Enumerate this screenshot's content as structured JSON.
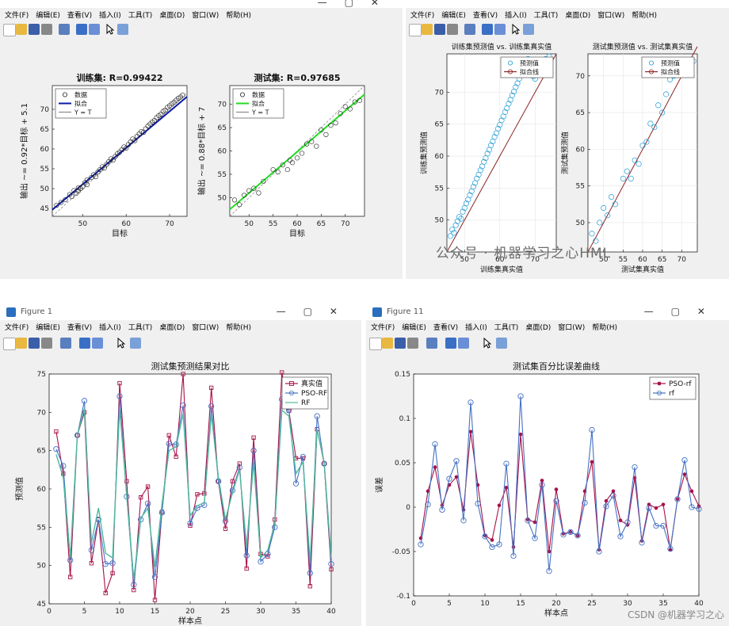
{
  "windows": {
    "top_left": {
      "menu": [
        "文件(F)",
        "编辑(E)",
        "查看(V)",
        "插入(I)",
        "工具(T)",
        "桌面(D)",
        "窗口(W)",
        "帮助(H)"
      ]
    },
    "top_right": {
      "menu": [
        "文件(F)",
        "编辑(E)",
        "查看(V)",
        "插入(I)",
        "工具(T)",
        "桌面(D)",
        "窗口(W)",
        "帮助(H)"
      ]
    },
    "bottom_left": {
      "title": "Figure 1",
      "menu": [
        "文件(F)",
        "编辑(E)",
        "查看(V)",
        "插入(I)",
        "工具(T)",
        "桌面(D)",
        "窗口(W)",
        "帮助(H)"
      ]
    },
    "bottom_right": {
      "title": "Figure 11",
      "menu": [
        "文件(F)",
        "编辑(E)",
        "查看(V)",
        "插入(I)",
        "工具(T)",
        "桌面(D)",
        "窗口(W)",
        "帮助(H)"
      ]
    }
  },
  "watermarks": {
    "wechat": "公众号 · 机器学习之心HML",
    "csdn": "CSDN @机器学习之心"
  },
  "colors": {
    "pred": "#a8114a",
    "pso": "#4472c4",
    "rf": "#4fb99f",
    "train_fit": "#0a1aa8",
    "test_fit": "#22dd22",
    "scatter_pt": "#1f9ad6",
    "fitline": "#8b2323"
  },
  "chart_data": [
    {
      "id": "reg-train",
      "type": "scatter",
      "title": "训练集: R=0.99422",
      "xlabel": "目标",
      "ylabel": "输出 ~= 0.92*目标 + 5.1",
      "xlim": [
        43,
        74
      ],
      "ylim": [
        43,
        76
      ],
      "xticks": [
        50,
        60,
        70
      ],
      "yticks": [
        45,
        50,
        55,
        60,
        65,
        70
      ],
      "legend": [
        "数据",
        "拟合",
        "Y = T"
      ],
      "legend_position": "top-left",
      "fit": {
        "slope": 0.92,
        "intercept": 5.1
      },
      "x": [
        44,
        45,
        46,
        47,
        47.5,
        48,
        48.5,
        49,
        49,
        49.5,
        50,
        50.5,
        51,
        51,
        52,
        52.5,
        53,
        53.5,
        54,
        54.5,
        55,
        55.5,
        56,
        56.5,
        57,
        57.5,
        58,
        58.5,
        59,
        59.5,
        60,
        60.5,
        61,
        61.5,
        62,
        62.5,
        63,
        63.5,
        64,
        64.5,
        65,
        65.5,
        66,
        66.5,
        67,
        67.5,
        68,
        68.5,
        69,
        69.5,
        70,
        70.5,
        71,
        71.5,
        72,
        72.5,
        73
      ],
      "y": [
        45.8,
        46.5,
        47.2,
        48.5,
        48,
        49.5,
        48.8,
        50.2,
        49.4,
        50,
        50.5,
        51.5,
        51,
        52.2,
        52.8,
        53.5,
        53,
        54.2,
        54.8,
        55.5,
        55.2,
        56.1,
        56.8,
        57.5,
        57.2,
        58.1,
        58.8,
        59.2,
        59.8,
        60.5,
        60.2,
        61.1,
        61.8,
        62.5,
        62.1,
        63.2,
        63.8,
        64.4,
        64.2,
        65.1,
        65.8,
        66.3,
        66.8,
        67.2,
        67.9,
        68.4,
        68.8,
        69.5,
        69.8,
        70.5,
        70.9,
        71.4,
        71.8,
        72.3,
        72.8,
        73.1,
        73.6
      ]
    },
    {
      "id": "reg-test",
      "type": "scatter",
      "title": "测试集: R=0.97685",
      "xlabel": "目标",
      "ylabel": "输出 ~= 0.88*目标 + 7",
      "xlim": [
        46,
        74
      ],
      "ylim": [
        46,
        74
      ],
      "xticks": [
        50,
        55,
        60,
        65,
        70
      ],
      "yticks": [
        50,
        55,
        60,
        65,
        70
      ],
      "legend": [
        "数据",
        "拟合",
        "Y = T"
      ],
      "legend_position": "top-left",
      "fit": {
        "slope": 0.88,
        "intercept": 7
      },
      "x": [
        47,
        48,
        49,
        50,
        51,
        52,
        53,
        55,
        56,
        57,
        58,
        58.5,
        59,
        60,
        61,
        62,
        63,
        64,
        65,
        66,
        67,
        68,
        69,
        70,
        71,
        72,
        73
      ],
      "y": [
        49.5,
        48.5,
        50.5,
        51.5,
        52,
        51,
        53.5,
        56,
        55.5,
        57,
        56,
        58,
        57.5,
        58.5,
        59.5,
        61.5,
        62,
        61,
        64.5,
        63.5,
        65.5,
        66,
        68,
        69.5,
        69,
        70.5,
        70.8
      ]
    },
    {
      "id": "train-fit",
      "type": "scatter",
      "title": "训练集预测值 vs. 训练集真实值",
      "xlabel": "训练集真实值",
      "ylabel": "训练集预测值",
      "xlim": [
        45,
        76
      ],
      "ylim": [
        45,
        76
      ],
      "xticks": [
        50,
        60,
        70
      ],
      "yticks": [
        50,
        55,
        60,
        65,
        70
      ],
      "legend": [
        "预测值",
        "拟合线"
      ],
      "legend_position": "top-right",
      "x": [
        46,
        46.5,
        47,
        47.5,
        48,
        48.5,
        49,
        49.5,
        50,
        50.5,
        51,
        51.5,
        52,
        52.5,
        53,
        53.5,
        54,
        54.5,
        55,
        55.5,
        56,
        56.5,
        57,
        57.5,
        58,
        58.5,
        59,
        59.5,
        60,
        60.5,
        61,
        61.5,
        62,
        62.5,
        63,
        63.5,
        64,
        64.5,
        65,
        65.5,
        66,
        66.5,
        67,
        67.5,
        68,
        68.5,
        69,
        69.5,
        70,
        70.5,
        71,
        72,
        73,
        74
      ],
      "y": [
        47.5,
        48.5,
        48,
        49.2,
        49.8,
        50.5,
        50.2,
        51.3,
        51.9,
        52.6,
        53.2,
        53.9,
        54.5,
        55.2,
        55.8,
        56.5,
        57.1,
        57.8,
        58.4,
        59.1,
        59.7,
        60.4,
        61,
        61.7,
        62.3,
        63,
        63.6,
        64.3,
        64.9,
        65.6,
        66.2,
        66.9,
        67.5,
        68.2,
        68.8,
        69.5,
        70.1,
        70.8,
        71.4,
        72.1,
        72.7,
        73.4,
        74,
        74.6,
        75.2,
        74.6,
        73.8,
        72.5,
        72.1,
        72.8,
        73.2,
        74.5,
        75.2,
        75.6
      ]
    },
    {
      "id": "test-fit",
      "type": "scatter",
      "title": "测试集预测值 vs. 测试集真实值",
      "xlabel": "测试集真实值",
      "ylabel": "测试集预测值",
      "xlim": [
        46,
        74
      ],
      "ylim": [
        46,
        73
      ],
      "xticks": [
        50,
        55,
        60,
        65,
        70
      ],
      "yticks": [
        50,
        55,
        60,
        65,
        70
      ],
      "legend": [
        "预测值",
        "拟合线"
      ],
      "legend_position": "top-right",
      "x": [
        47,
        48,
        49,
        50,
        51,
        52,
        53,
        55,
        56,
        57,
        58,
        59,
        60,
        61,
        62,
        63,
        64,
        65,
        66,
        67,
        68,
        69,
        70,
        71,
        72,
        73
      ],
      "y": [
        48.5,
        47.5,
        50,
        52,
        51,
        53.5,
        52.5,
        56,
        57,
        56,
        58.5,
        58,
        60.5,
        61,
        63.5,
        63,
        66,
        65,
        67.5,
        69.5,
        70,
        70.5,
        71,
        70.5,
        71,
        72
      ]
    },
    {
      "id": "test-compare",
      "type": "line",
      "title": "测试集预测结果对比",
      "xlabel": "样本点",
      "ylabel": "预测值",
      "xlim": [
        0,
        40
      ],
      "ylim": [
        45,
        75
      ],
      "xticks": [
        0,
        5,
        10,
        15,
        20,
        25,
        30,
        35,
        40
      ],
      "yticks": [
        45,
        50,
        55,
        60,
        65,
        70,
        75
      ],
      "legend_position": "top-right",
      "x": [
        1,
        2,
        3,
        4,
        5,
        6,
        7,
        8,
        9,
        10,
        11,
        12,
        13,
        14,
        15,
        16,
        17,
        18,
        19,
        20,
        21,
        22,
        23,
        24,
        25,
        26,
        27,
        28,
        29,
        30,
        31,
        32,
        33,
        34,
        35,
        36,
        37,
        38,
        39,
        40
      ],
      "series": [
        {
          "name": "真实值",
          "marker": "square",
          "values": [
            67.5,
            62,
            48.5,
            67,
            70,
            50.3,
            56,
            46.4,
            49,
            73.8,
            61,
            46.8,
            58.9,
            60.3,
            45.5,
            57,
            67,
            64.2,
            75,
            55.2,
            59.3,
            59.4,
            73.2,
            61,
            54.8,
            61,
            63.3,
            49.6,
            66.7,
            51.5,
            51.2,
            56,
            75.2,
            70.2,
            64,
            64,
            47.3,
            67.8,
            63.3,
            49.5
          ]
        },
        {
          "name": "PSO-RF",
          "marker": "circle",
          "values": [
            65.2,
            63,
            50.7,
            67,
            71.5,
            52,
            56,
            50.2,
            50.3,
            72.1,
            59,
            47.5,
            56,
            58.1,
            48.5,
            56.9,
            65.9,
            65.8,
            70.9,
            55.5,
            57.5,
            57.9,
            70.8,
            61,
            55.8,
            59.8,
            62.8,
            51.3,
            65,
            50.5,
            51.5,
            55,
            71.7,
            70.3,
            60.7,
            64.2,
            49,
            69.5,
            63.3,
            50.2
          ]
        },
        {
          "name": "RF",
          "values": [
            64.5,
            61.5,
            51,
            67,
            70.5,
            53,
            57.5,
            51.6,
            51,
            70.5,
            59.2,
            48.2,
            56.2,
            57.5,
            49.8,
            58,
            65,
            65.5,
            69.8,
            56.5,
            57.8,
            58.2,
            69.8,
            61.5,
            56,
            59.5,
            62.5,
            52.5,
            63.5,
            51,
            52,
            55.5,
            70.3,
            69.5,
            62,
            63.5,
            50.5,
            67.8,
            63.5,
            51
          ]
        }
      ]
    },
    {
      "id": "test-error",
      "type": "line",
      "title": "测试集百分比误差曲线",
      "xlabel": "样本点",
      "ylabel": "误差",
      "xlim": [
        0,
        40
      ],
      "ylim": [
        -0.1,
        0.15
      ],
      "xticks": [
        0,
        5,
        10,
        15,
        20,
        25,
        30,
        35,
        40
      ],
      "yticks": [
        -0.1,
        -0.05,
        0,
        0.05,
        0.1,
        0.15
      ],
      "legend_position": "top-right",
      "x": [
        1,
        2,
        3,
        4,
        5,
        6,
        7,
        8,
        9,
        10,
        11,
        12,
        13,
        14,
        15,
        16,
        17,
        18,
        19,
        20,
        21,
        22,
        23,
        24,
        25,
        26,
        27,
        28,
        29,
        30,
        31,
        32,
        33,
        34,
        35,
        36,
        37,
        38,
        39,
        40
      ],
      "series": [
        {
          "name": "PSO-rf",
          "marker": "dot",
          "values": [
            -0.035,
            0.018,
            0.045,
            0.002,
            0.025,
            0.034,
            -0.003,
            0.085,
            0.025,
            -0.032,
            -0.037,
            0.002,
            0.022,
            -0.045,
            0.082,
            -0.014,
            -0.017,
            0.03,
            -0.05,
            0.02,
            -0.03,
            -0.028,
            -0.032,
            0.018,
            0.051,
            -0.048,
            0.007,
            0.018,
            -0.015,
            -0.02,
            0.033,
            -0.038,
            0.003,
            -0.001,
            0.003,
            -0.048,
            0.009,
            0.037,
            0.018,
            0.001
          ]
        },
        {
          "name": "rf",
          "marker": "circle",
          "values": [
            -0.042,
            0.003,
            0.071,
            -0.003,
            0.032,
            0.052,
            -0.015,
            0.118,
            0.004,
            -0.033,
            -0.045,
            -0.042,
            0.049,
            -0.055,
            0.125,
            -0.015,
            -0.035,
            0.025,
            -0.072,
            0.007,
            -0.031,
            -0.028,
            -0.032,
            0.005,
            0.087,
            -0.05,
            0.001,
            0.013,
            -0.033,
            -0.017,
            0.045,
            -0.04,
            -0.001,
            -0.021,
            -0.021,
            -0.047,
            0.009,
            0.053,
            0.0,
            -0.002
          ]
        }
      ]
    }
  ]
}
